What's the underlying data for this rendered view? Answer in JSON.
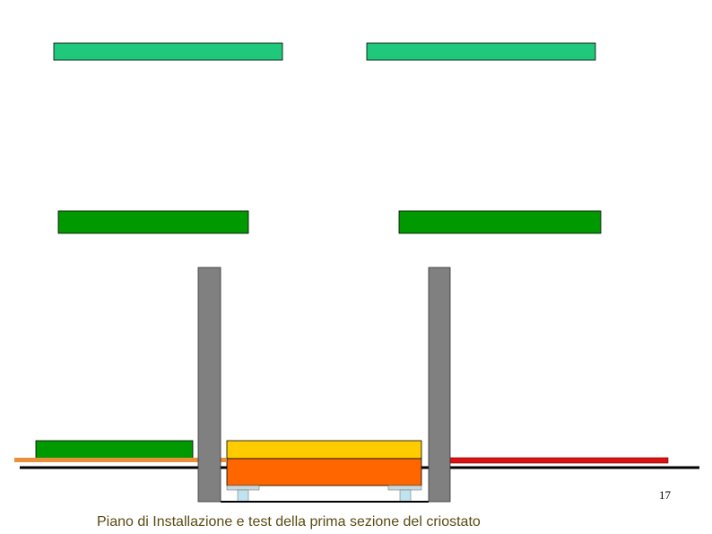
{
  "footer": {
    "caption": "Piano di Installazione e test della prima sezione del criostato",
    "page_number": "17"
  }
}
